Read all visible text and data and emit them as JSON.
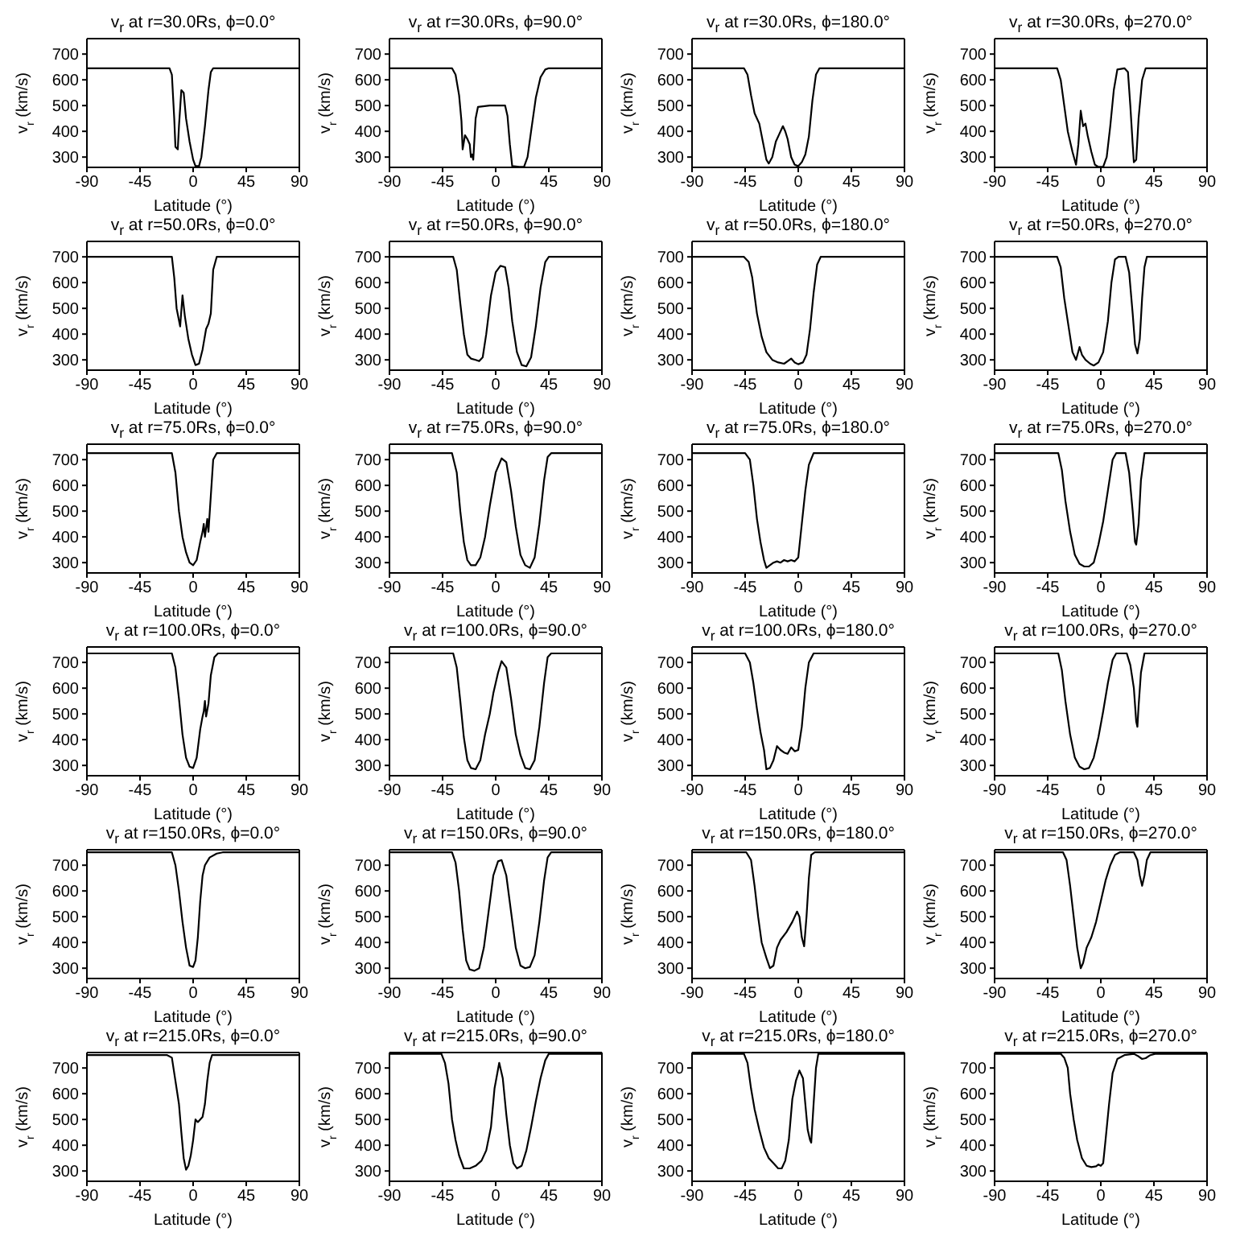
{
  "chart_data": [
    {
      "type": "line",
      "title": "v$_{r}$ at r=30.0Rs, ϕ=0.0°",
      "xlabel": "Latitude (°)",
      "ylabel": "v$_{r}$ (km/s)",
      "xlim": [
        -90,
        90
      ],
      "xticks": [
        -90,
        -45,
        0,
        45,
        90
      ],
      "ylim": [
        260,
        760
      ],
      "yticks": [
        300,
        400,
        500,
        600,
        700
      ],
      "series": [
        {
          "color": "#000000",
          "x": [
            -90,
            -20,
            -18,
            -16,
            -15,
            -13,
            -12,
            -10,
            -8,
            -6,
            -3,
            0,
            2,
            5,
            7,
            10,
            13,
            15,
            17,
            90
          ],
          "values": [
            645,
            645,
            620,
            450,
            340,
            330,
            420,
            560,
            550,
            450,
            360,
            290,
            265,
            265,
            300,
            420,
            560,
            630,
            645,
            645
          ]
        }
      ]
    },
    {
      "type": "line",
      "title": "v$_{r}$ at r=30.0Rs, ϕ=90.0°",
      "xlabel": "Latitude (°)",
      "ylabel": "v$_{r}$ (km/s)",
      "xlim": [
        -90,
        90
      ],
      "xticks": [
        -90,
        -45,
        0,
        45,
        90
      ],
      "ylim": [
        260,
        760
      ],
      "yticks": [
        300,
        400,
        500,
        600,
        700
      ],
      "series": [
        {
          "color": "#000000",
          "x": [
            -90,
            -37,
            -34,
            -31,
            -29,
            -28,
            -26,
            -24,
            -22,
            -21,
            -20,
            -19,
            -17,
            -15,
            -5,
            8,
            10,
            12,
            14,
            20,
            24,
            27,
            30,
            34,
            38,
            42,
            45,
            90
          ],
          "values": [
            645,
            645,
            620,
            540,
            440,
            330,
            385,
            370,
            350,
            300,
            310,
            290,
            450,
            495,
            500,
            500,
            460,
            350,
            265,
            262,
            262,
            300,
            400,
            530,
            610,
            640,
            645,
            645
          ]
        }
      ]
    },
    {
      "type": "line",
      "title": "v$_{r}$ at r=30.0Rs, ϕ=180.0°",
      "xlabel": "Latitude (°)",
      "ylabel": "v$_{r}$ (km/s)",
      "xlim": [
        -90,
        90
      ],
      "xticks": [
        -90,
        -45,
        0,
        45,
        90
      ],
      "ylim": [
        260,
        760
      ],
      "yticks": [
        300,
        400,
        500,
        600,
        700
      ],
      "series": [
        {
          "color": "#000000",
          "x": [
            -90,
            -46,
            -43,
            -40,
            -37,
            -33,
            -30,
            -27,
            -25,
            -22,
            -19,
            -16,
            -13,
            -11,
            -9,
            -6,
            -3,
            0,
            3,
            6,
            9,
            12,
            15,
            18,
            90
          ],
          "values": [
            645,
            645,
            620,
            540,
            470,
            430,
            360,
            290,
            275,
            300,
            360,
            390,
            420,
            400,
            370,
            300,
            270,
            265,
            280,
            310,
            380,
            520,
            620,
            645,
            645
          ]
        }
      ]
    },
    {
      "type": "line",
      "title": "v$_{r}$ at r=30.0Rs, ϕ=270.0°",
      "xlabel": "Latitude (°)",
      "ylabel": "v$_{r}$ (km/s)",
      "xlim": [
        -90,
        90
      ],
      "xticks": [
        -90,
        -45,
        0,
        45,
        90
      ],
      "ylim": [
        260,
        760
      ],
      "yticks": [
        300,
        400,
        500,
        600,
        700
      ],
      "series": [
        {
          "color": "#000000",
          "x": [
            -90,
            -37,
            -34,
            -31,
            -28,
            -24,
            -21,
            -19,
            -17,
            -15,
            -13,
            -11,
            -8,
            -5,
            -2,
            2,
            5,
            8,
            11,
            14,
            20,
            23,
            25,
            27,
            28,
            30,
            32,
            35,
            38,
            90
          ],
          "values": [
            645,
            645,
            600,
            500,
            400,
            320,
            270,
            350,
            480,
            420,
            430,
            380,
            320,
            270,
            262,
            262,
            300,
            420,
            560,
            640,
            645,
            630,
            500,
            350,
            280,
            290,
            450,
            600,
            645,
            645
          ]
        }
      ]
    },
    {
      "type": "line",
      "title": "v$_{r}$ at r=50.0Rs, ϕ=0.0°",
      "xlabel": "Latitude (°)",
      "ylabel": "v$_{r}$ (km/s)",
      "xlim": [
        -90,
        90
      ],
      "xticks": [
        -90,
        -45,
        0,
        45,
        90
      ],
      "ylim": [
        260,
        760
      ],
      "yticks": [
        300,
        400,
        500,
        600,
        700
      ],
      "series": [
        {
          "color": "#000000",
          "x": [
            -90,
            -18,
            -16,
            -14,
            -11,
            -9,
            -7,
            -4,
            -1,
            2,
            5,
            8,
            11,
            13,
            15,
            17,
            20,
            90
          ],
          "values": [
            700,
            700,
            620,
            500,
            430,
            550,
            470,
            380,
            320,
            280,
            285,
            340,
            420,
            440,
            480,
            650,
            700,
            700
          ]
        }
      ]
    },
    {
      "type": "line",
      "title": "v$_{r}$ at r=50.0Rs, ϕ=90.0°",
      "xlabel": "Latitude (°)",
      "ylabel": "v$_{r}$ (km/s)",
      "xlim": [
        -90,
        90
      ],
      "xticks": [
        -90,
        -45,
        0,
        45,
        90
      ],
      "ylim": [
        260,
        760
      ],
      "yticks": [
        300,
        400,
        500,
        600,
        700
      ],
      "series": [
        {
          "color": "#000000",
          "x": [
            -90,
            -36,
            -33,
            -30,
            -27,
            -24,
            -21,
            -17,
            -14,
            -11,
            -8,
            -4,
            0,
            4,
            8,
            11,
            14,
            18,
            22,
            26,
            30,
            34,
            38,
            42,
            45,
            90
          ],
          "values": [
            700,
            700,
            650,
            520,
            400,
            320,
            305,
            300,
            295,
            310,
            400,
            550,
            640,
            665,
            660,
            580,
            450,
            330,
            280,
            275,
            310,
            430,
            580,
            680,
            700,
            700
          ]
        }
      ]
    },
    {
      "type": "line",
      "title": "v$_{r}$ at r=50.0Rs, ϕ=180.0°",
      "xlabel": "Latitude (°)",
      "ylabel": "v$_{r}$ (km/s)",
      "xlim": [
        -90,
        90
      ],
      "xticks": [
        -90,
        -45,
        0,
        45,
        90
      ],
      "ylim": [
        260,
        760
      ],
      "yticks": [
        300,
        400,
        500,
        600,
        700
      ],
      "series": [
        {
          "color": "#000000",
          "x": [
            -90,
            -46,
            -42,
            -39,
            -35,
            -31,
            -27,
            -22,
            -17,
            -12,
            -9,
            -6,
            -3,
            0,
            4,
            7,
            10,
            13,
            16,
            19,
            90
          ],
          "values": [
            700,
            700,
            680,
            620,
            480,
            390,
            330,
            300,
            290,
            285,
            295,
            305,
            290,
            283,
            290,
            320,
            420,
            560,
            670,
            700,
            700
          ]
        }
      ]
    },
    {
      "type": "line",
      "title": "v$_{r}$ at r=50.0Rs, ϕ=270.0°",
      "xlabel": "Latitude (°)",
      "ylabel": "v$_{r}$ (km/s)",
      "xlim": [
        -90,
        90
      ],
      "xticks": [
        -90,
        -45,
        0,
        45,
        90
      ],
      "ylim": [
        260,
        760
      ],
      "yticks": [
        300,
        400,
        500,
        600,
        700
      ],
      "series": [
        {
          "color": "#000000",
          "x": [
            -90,
            -37,
            -34,
            -31,
            -27,
            -24,
            -21,
            -18,
            -16,
            -13,
            -9,
            -6,
            -2,
            2,
            6,
            9,
            12,
            15,
            21,
            24,
            27,
            29,
            31,
            33,
            35,
            37,
            39,
            90
          ],
          "values": [
            700,
            700,
            660,
            540,
            420,
            330,
            300,
            350,
            320,
            300,
            285,
            278,
            290,
            330,
            450,
            600,
            690,
            700,
            700,
            640,
            480,
            360,
            325,
            380,
            540,
            660,
            700,
            700
          ]
        }
      ]
    },
    {
      "type": "line",
      "title": "v$_{r}$ at r=75.0Rs, ϕ=0.0°",
      "xlabel": "Latitude (°)",
      "ylabel": "v$_{r}$ (km/s)",
      "xlim": [
        -90,
        90
      ],
      "xticks": [
        -90,
        -45,
        0,
        45,
        90
      ],
      "ylim": [
        260,
        760
      ],
      "yticks": [
        300,
        400,
        500,
        600,
        700
      ],
      "series": [
        {
          "color": "#000000",
          "x": [
            -90,
            -18,
            -15,
            -12,
            -9,
            -6,
            -3,
            0,
            3,
            6,
            8,
            9,
            10,
            12,
            13,
            15,
            17,
            20,
            90
          ],
          "values": [
            725,
            725,
            650,
            500,
            400,
            340,
            300,
            290,
            310,
            380,
            420,
            450,
            400,
            470,
            420,
            560,
            700,
            725,
            725
          ]
        }
      ]
    },
    {
      "type": "line",
      "title": "v$_{r}$ at r=75.0Rs, ϕ=90.0°",
      "xlabel": "Latitude (°)",
      "ylabel": "v$_{r}$ (km/s)",
      "xlim": [
        -90,
        90
      ],
      "xticks": [
        -90,
        -45,
        0,
        45,
        90
      ],
      "ylim": [
        260,
        760
      ],
      "yticks": [
        300,
        400,
        500,
        600,
        700
      ],
      "series": [
        {
          "color": "#000000",
          "x": [
            -90,
            -37,
            -33,
            -30,
            -27,
            -24,
            -21,
            -17,
            -13,
            -9,
            -5,
            0,
            5,
            9,
            13,
            17,
            21,
            25,
            29,
            33,
            37,
            41,
            44,
            47,
            90
          ],
          "values": [
            725,
            725,
            650,
            500,
            380,
            310,
            290,
            290,
            320,
            400,
            520,
            650,
            705,
            690,
            580,
            440,
            330,
            290,
            280,
            320,
            450,
            620,
            710,
            725,
            725
          ]
        }
      ]
    },
    {
      "type": "line",
      "title": "v$_{r}$ at r=75.0Rs, ϕ=180.0°",
      "xlabel": "Latitude (°)",
      "ylabel": "v$_{r}$ (km/s)",
      "xlim": [
        -90,
        90
      ],
      "xticks": [
        -90,
        -45,
        0,
        45,
        90
      ],
      "ylim": [
        260,
        760
      ],
      "yticks": [
        300,
        400,
        500,
        600,
        700
      ],
      "series": [
        {
          "color": "#000000",
          "x": [
            -90,
            -45,
            -41,
            -38,
            -35,
            -32,
            -29,
            -27,
            -24,
            -21,
            -18,
            -15,
            -12,
            -9,
            -6,
            -3,
            0,
            3,
            6,
            9,
            13,
            90
          ],
          "values": [
            725,
            725,
            700,
            600,
            470,
            380,
            310,
            280,
            290,
            300,
            305,
            300,
            310,
            305,
            310,
            305,
            320,
            450,
            580,
            680,
            725,
            725
          ]
        }
      ]
    },
    {
      "type": "line",
      "title": "v$_{r}$ at r=75.0Rs, ϕ=270.0°",
      "xlabel": "Latitude (°)",
      "ylabel": "v$_{r}$ (km/s)",
      "xlim": [
        -90,
        90
      ],
      "xticks": [
        -90,
        -45,
        0,
        45,
        90
      ],
      "ylim": [
        260,
        760
      ],
      "yticks": [
        300,
        400,
        500,
        600,
        700
      ],
      "series": [
        {
          "color": "#000000",
          "x": [
            -90,
            -36,
            -33,
            -30,
            -26,
            -22,
            -18,
            -14,
            -10,
            -6,
            -2,
            2,
            6,
            10,
            13,
            21,
            24,
            27,
            29,
            30,
            32,
            34,
            37,
            90
          ],
          "values": [
            725,
            725,
            660,
            540,
            420,
            330,
            295,
            285,
            285,
            300,
            370,
            460,
            580,
            700,
            725,
            725,
            650,
            500,
            380,
            370,
            450,
            620,
            725,
            725
          ]
        }
      ]
    },
    {
      "type": "line",
      "title": "v$_{r}$ at r=100.0Rs, ϕ=0.0°",
      "xlabel": "Latitude (°)",
      "ylabel": "v$_{r}$ (km/s)",
      "xlim": [
        -90,
        90
      ],
      "xticks": [
        -90,
        -45,
        0,
        45,
        90
      ],
      "ylim": [
        260,
        760
      ],
      "yticks": [
        300,
        400,
        500,
        600,
        700
      ],
      "series": [
        {
          "color": "#000000",
          "x": [
            -90,
            -18,
            -15,
            -12,
            -9,
            -6,
            -3,
            0,
            3,
            6,
            8,
            9,
            10,
            11,
            13,
            15,
            18,
            21,
            90
          ],
          "values": [
            735,
            735,
            680,
            560,
            420,
            330,
            295,
            290,
            330,
            440,
            490,
            510,
            550,
            490,
            540,
            650,
            720,
            735,
            735
          ]
        }
      ]
    },
    {
      "type": "line",
      "title": "v$_{r}$ at r=100.0Rs, ϕ=90.0°",
      "xlabel": "Latitude (°)",
      "ylabel": "v$_{r}$ (km/s)",
      "xlim": [
        -90,
        90
      ],
      "xticks": [
        -90,
        -45,
        0,
        45,
        90
      ],
      "ylim": [
        260,
        760
      ],
      "yticks": [
        300,
        400,
        500,
        600,
        700
      ],
      "series": [
        {
          "color": "#000000",
          "x": [
            -90,
            -36,
            -33,
            -30,
            -27,
            -24,
            -21,
            -17,
            -13,
            -9,
            -5,
            -2,
            2,
            5,
            9,
            13,
            17,
            21,
            25,
            29,
            33,
            37,
            41,
            44,
            47,
            90
          ],
          "values": [
            735,
            735,
            680,
            550,
            410,
            320,
            290,
            285,
            320,
            420,
            500,
            580,
            660,
            705,
            680,
            560,
            420,
            340,
            290,
            285,
            320,
            450,
            620,
            720,
            735,
            735
          ]
        }
      ]
    },
    {
      "type": "line",
      "title": "v$_{r}$ at r=100.0Rs, ϕ=180.0°",
      "xlabel": "Latitude (°)",
      "ylabel": "v$_{r}$ (km/s)",
      "xlim": [
        -90,
        90
      ],
      "xticks": [
        -90,
        -45,
        0,
        45,
        90
      ],
      "ylim": [
        260,
        760
      ],
      "yticks": [
        300,
        400,
        500,
        600,
        700
      ],
      "series": [
        {
          "color": "#000000",
          "x": [
            -90,
            -45,
            -41,
            -38,
            -35,
            -32,
            -29,
            -27,
            -24,
            -21,
            -18,
            -15,
            -12,
            -9,
            -6,
            -3,
            0,
            3,
            6,
            9,
            13,
            90
          ],
          "values": [
            735,
            735,
            700,
            620,
            520,
            430,
            360,
            285,
            290,
            320,
            375,
            360,
            350,
            345,
            370,
            355,
            360,
            450,
            600,
            700,
            735,
            735
          ]
        }
      ]
    },
    {
      "type": "line",
      "title": "v$_{r}$ at r=100.0Rs, ϕ=270.0°",
      "xlabel": "Latitude (°)",
      "ylabel": "v$_{r}$ (km/s)",
      "xlim": [
        -90,
        90
      ],
      "xticks": [
        -90,
        -45,
        0,
        45,
        90
      ],
      "ylim": [
        260,
        760
      ],
      "yticks": [
        300,
        400,
        500,
        600,
        700
      ],
      "series": [
        {
          "color": "#000000",
          "x": [
            -90,
            -36,
            -33,
            -30,
            -26,
            -22,
            -18,
            -14,
            -10,
            -6,
            -2,
            2,
            6,
            10,
            13,
            22,
            25,
            28,
            30,
            31,
            32,
            34,
            37,
            90
          ],
          "values": [
            735,
            735,
            670,
            550,
            420,
            330,
            295,
            285,
            290,
            330,
            410,
            510,
            620,
            710,
            735,
            735,
            690,
            600,
            470,
            450,
            530,
            660,
            735,
            735
          ]
        }
      ]
    },
    {
      "type": "line",
      "title": "v$_{r}$ at r=150.0Rs, ϕ=0.0°",
      "xlabel": "Latitude (°)",
      "ylabel": "v$_{r}$ (km/s)",
      "xlim": [
        -90,
        90
      ],
      "xticks": [
        -90,
        -45,
        0,
        45,
        90
      ],
      "ylim": [
        260,
        760
      ],
      "yticks": [
        300,
        400,
        500,
        600,
        700
      ],
      "series": [
        {
          "color": "#000000",
          "x": [
            -90,
            -18,
            -15,
            -12,
            -9,
            -6,
            -3,
            0,
            2,
            4,
            6,
            8,
            10,
            14,
            20,
            25,
            90
          ],
          "values": [
            750,
            750,
            700,
            600,
            480,
            380,
            310,
            305,
            330,
            420,
            560,
            660,
            700,
            730,
            745,
            750,
            750
          ]
        }
      ]
    },
    {
      "type": "line",
      "title": "v$_{r}$ at r=150.0Rs, ϕ=90.0°",
      "xlabel": "Latitude (°)",
      "ylabel": "v$_{r}$ (km/s)",
      "xlim": [
        -90,
        90
      ],
      "xticks": [
        -90,
        -45,
        0,
        45,
        90
      ],
      "ylim": [
        260,
        760
      ],
      "yticks": [
        300,
        400,
        500,
        600,
        700
      ],
      "series": [
        {
          "color": "#000000",
          "x": [
            -90,
            -37,
            -34,
            -31,
            -28,
            -25,
            -22,
            -18,
            -14,
            -10,
            -6,
            -2,
            2,
            5,
            9,
            13,
            17,
            21,
            25,
            29,
            33,
            37,
            41,
            44,
            47,
            90
          ],
          "values": [
            750,
            750,
            710,
            600,
            450,
            330,
            295,
            290,
            300,
            380,
            520,
            660,
            715,
            720,
            660,
            520,
            380,
            310,
            300,
            305,
            350,
            480,
            640,
            730,
            750,
            750
          ]
        }
      ]
    },
    {
      "type": "line",
      "title": "v$_{r}$ at r=150.0Rs, ϕ=180.0°",
      "xlabel": "Latitude (°)",
      "ylabel": "v$_{r}$ (km/s)",
      "xlim": [
        -90,
        90
      ],
      "xticks": [
        -90,
        -45,
        0,
        45,
        90
      ],
      "ylim": [
        260,
        760
      ],
      "yticks": [
        300,
        400,
        500,
        600,
        700
      ],
      "series": [
        {
          "color": "#000000",
          "x": [
            -90,
            -44,
            -40,
            -37,
            -34,
            -31,
            -27,
            -24,
            -21,
            -18,
            -15,
            -10,
            -5,
            -1,
            1,
            3,
            5,
            7,
            9,
            11,
            14,
            90
          ],
          "values": [
            750,
            750,
            720,
            620,
            500,
            400,
            340,
            300,
            310,
            380,
            410,
            440,
            480,
            520,
            500,
            420,
            385,
            500,
            650,
            740,
            750,
            750
          ]
        }
      ]
    },
    {
      "type": "line",
      "title": "v$_{r}$ at r=150.0Rs, ϕ=270.0°",
      "xlabel": "Latitude (°)",
      "ylabel": "v$_{r}$ (km/s)",
      "xlim": [
        -90,
        90
      ],
      "xticks": [
        -90,
        -45,
        0,
        45,
        90
      ],
      "ylim": [
        260,
        760
      ],
      "yticks": [
        300,
        400,
        500,
        600,
        700
      ],
      "series": [
        {
          "color": "#000000",
          "x": [
            -90,
            -32,
            -29,
            -26,
            -23,
            -20,
            -17,
            -15,
            -12,
            -8,
            -4,
            0,
            4,
            8,
            12,
            16,
            28,
            31,
            33,
            35,
            37,
            39,
            42,
            90
          ],
          "values": [
            750,
            750,
            720,
            620,
            500,
            380,
            300,
            320,
            380,
            420,
            480,
            560,
            640,
            700,
            740,
            750,
            750,
            720,
            660,
            620,
            660,
            720,
            750,
            750
          ]
        }
      ]
    },
    {
      "type": "line",
      "title": "v$_{r}$ at r=215.0Rs, ϕ=0.0°",
      "xlabel": "Latitude (°)",
      "ylabel": "v$_{r}$ (km/s)",
      "xlim": [
        -90,
        90
      ],
      "xticks": [
        -90,
        -45,
        0,
        45,
        90
      ],
      "ylim": [
        260,
        760
      ],
      "yticks": [
        300,
        400,
        500,
        600,
        700
      ],
      "series": [
        {
          "color": "#000000",
          "x": [
            -90,
            -22,
            -18,
            -15,
            -12,
            -10,
            -8,
            -6,
            -4,
            -2,
            0,
            2,
            4,
            6,
            8,
            10,
            12,
            14,
            16,
            90
          ],
          "values": [
            750,
            750,
            740,
            650,
            560,
            450,
            350,
            305,
            320,
            360,
            420,
            500,
            490,
            500,
            510,
            560,
            650,
            720,
            750,
            750
          ]
        }
      ]
    },
    {
      "type": "line",
      "title": "v$_{r}$ at r=215.0Rs, ϕ=90.0°",
      "xlabel": "Latitude (°)",
      "ylabel": "v$_{r}$ (km/s)",
      "xlim": [
        -90,
        90
      ],
      "xticks": [
        -90,
        -45,
        0,
        45,
        90
      ],
      "ylim": [
        260,
        760
      ],
      "yticks": [
        300,
        400,
        500,
        600,
        700
      ],
      "series": [
        {
          "color": "#000000",
          "x": [
            -90,
            -46,
            -43,
            -40,
            -37,
            -34,
            -31,
            -27,
            -22,
            -17,
            -12,
            -8,
            -4,
            -1,
            3,
            6,
            9,
            12,
            15,
            18,
            22,
            26,
            30,
            34,
            38,
            42,
            45,
            90
          ],
          "values": [
            755,
            755,
            720,
            640,
            500,
            420,
            360,
            310,
            310,
            320,
            340,
            380,
            470,
            620,
            720,
            660,
            520,
            400,
            330,
            310,
            320,
            380,
            470,
            570,
            660,
            730,
            755,
            755
          ]
        }
      ]
    },
    {
      "type": "line",
      "title": "v$_{r}$ at r=215.0Rs, ϕ=180.0°",
      "xlabel": "Latitude (°)",
      "ylabel": "v$_{r}$ (km/s)",
      "xlim": [
        -90,
        90
      ],
      "xticks": [
        -90,
        -45,
        0,
        45,
        90
      ],
      "ylim": [
        260,
        760
      ],
      "yticks": [
        300,
        400,
        500,
        600,
        700
      ],
      "series": [
        {
          "color": "#000000",
          "x": [
            -90,
            -46,
            -43,
            -40,
            -37,
            -33,
            -29,
            -25,
            -21,
            -17,
            -14,
            -11,
            -8,
            -5,
            -2,
            1,
            4,
            6,
            8,
            10,
            11,
            13,
            15,
            17,
            90
          ],
          "values": [
            755,
            755,
            720,
            620,
            540,
            460,
            390,
            350,
            330,
            310,
            310,
            340,
            420,
            580,
            650,
            690,
            660,
            560,
            460,
            420,
            410,
            560,
            700,
            755,
            755
          ]
        }
      ]
    },
    {
      "type": "line",
      "title": "v$_{r}$ at r=215.0Rs, ϕ=270.0°",
      "xlabel": "Latitude (°)",
      "ylabel": "v$_{r}$ (km/s)",
      "xlim": [
        -90,
        90
      ],
      "xticks": [
        -90,
        -45,
        0,
        45,
        90
      ],
      "ylim": [
        260,
        760
      ],
      "yticks": [
        300,
        400,
        500,
        600,
        700
      ],
      "series": [
        {
          "color": "#000000",
          "x": [
            -90,
            -34,
            -31,
            -28,
            -26,
            -23,
            -20,
            -16,
            -12,
            -8,
            -4,
            -2,
            0,
            2,
            4,
            7,
            10,
            14,
            20,
            28,
            32,
            35,
            38,
            42,
            46,
            90
          ],
          "values": [
            755,
            755,
            740,
            700,
            600,
            500,
            420,
            350,
            320,
            315,
            318,
            325,
            320,
            330,
            420,
            560,
            680,
            735,
            750,
            755,
            745,
            735,
            738,
            750,
            755,
            755
          ]
        }
      ]
    }
  ]
}
